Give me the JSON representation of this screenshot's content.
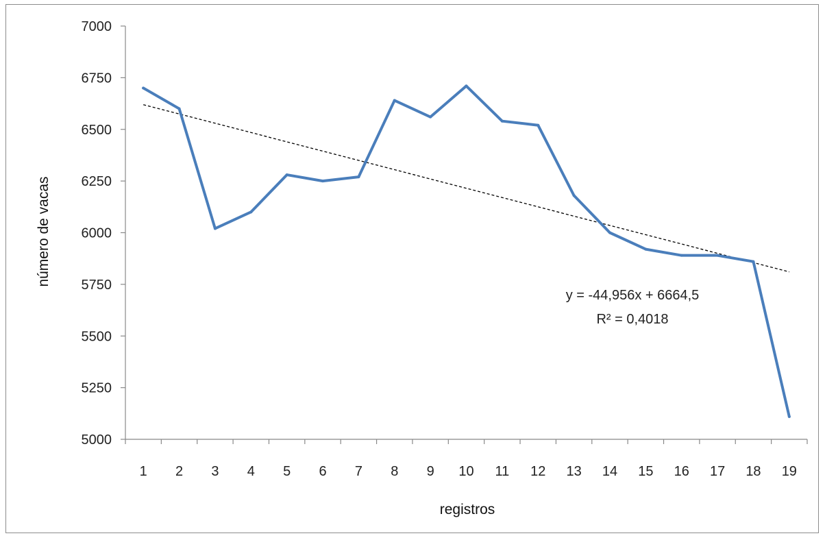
{
  "chart_data": {
    "type": "line",
    "xlabel": "registros",
    "ylabel": "número de vacas",
    "ylim": [
      5000,
      7000
    ],
    "yticks": [
      5000,
      5250,
      5500,
      5750,
      6000,
      6250,
      6500,
      6750,
      7000
    ],
    "categories": [
      "1",
      "2",
      "3",
      "4",
      "5",
      "6",
      "7",
      "8",
      "9",
      "10",
      "11",
      "12",
      "13",
      "14",
      "15",
      "16",
      "17",
      "18",
      "19"
    ],
    "series": [
      {
        "name": "",
        "values": [
          6700,
          6600,
          6020,
          6100,
          6280,
          6250,
          6270,
          6640,
          6560,
          6710,
          6540,
          6520,
          6180,
          6000,
          5920,
          5890,
          5890,
          5860,
          5110
        ],
        "color": "#4a7ebb"
      }
    ],
    "trendline": {
      "type": "linear",
      "slope": -44.956,
      "intercept": 6664.5,
      "color": "#000000",
      "style": "dashed"
    },
    "annotations": {
      "equation": "y = -44,956x + 6664,5",
      "r_squared": "R² = 0,4018"
    },
    "grid": false,
    "legend": "none"
  }
}
